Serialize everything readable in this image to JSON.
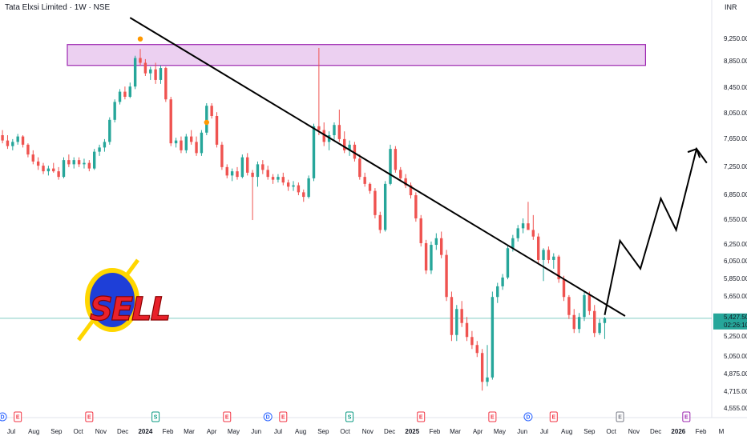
{
  "header": {
    "title": "Tata Elxsi Limited · 1W · NSE",
    "currency": "INR"
  },
  "price_tag": {
    "price": "5,427.50",
    "countdown": "02:26:10",
    "color": "#26a69a"
  },
  "colors": {
    "up": "#26a69a",
    "down": "#ef5350",
    "trendline": "#000000",
    "zone_fill": "#e9c8ef",
    "zone_stroke": "#9c27b0",
    "dividend": "#2962ff",
    "earnings": "#f23645",
    "split": "#089981",
    "event_gray": "#787b86",
    "event_purple": "#9c27b0",
    "marker": "#ff9800"
  },
  "logo": {
    "text": "SELL",
    "ring_color": "#ffd600",
    "disc_color": "#1e3fd8",
    "text_color": "#e8212a"
  },
  "chart_data": {
    "type": "candlestick",
    "title": "Tata Elxsi Limited · 1W · NSE",
    "currency": "INR",
    "y_ticks": [
      9250,
      8850,
      8450,
      8050,
      7650,
      7250,
      6850,
      6550,
      6250,
      6050,
      5850,
      5650,
      5250,
      5050,
      4875,
      4715,
      4555
    ],
    "y_tick_labels": [
      "9,250.00",
      "8,850.00",
      "8,450.00",
      "8,050.00",
      "7,650.00",
      "7,250.00",
      "6,850.00",
      "6,550.00",
      "6,250.00",
      "6,050.00",
      "5,850.00",
      "5,650.00",
      "5,250.00",
      "5,050.00",
      "4,875.00",
      "4,715.00",
      "4,555.00"
    ],
    "x_ticks": [
      "2023-07",
      "2023-08",
      "2023-09",
      "2023-10",
      "2023-11",
      "2023-12",
      "2024-01",
      "2024-02",
      "2024-03",
      "2024-04",
      "2024-05",
      "2024-06",
      "2024-07",
      "2024-08",
      "2024-09",
      "2024-10",
      "2024-11",
      "2024-12",
      "2025-01",
      "2025-02",
      "2025-03",
      "2025-04",
      "2025-05",
      "2025-06",
      "2025-07",
      "2025-08",
      "2025-09",
      "2025-10",
      "2025-11",
      "2025-12",
      "2026-01",
      "2026-02",
      "2026-03"
    ],
    "x_tick_labels": [
      "Jul",
      "Aug",
      "Sep",
      "Oct",
      "Nov",
      "Dec",
      "2024",
      "Feb",
      "Mar",
      "Apr",
      "May",
      "Jun",
      "Jul",
      "Aug",
      "Sep",
      "Oct",
      "Nov",
      "Dec",
      "2025",
      "Feb",
      "Mar",
      "Apr",
      "May",
      "Jun",
      "Jul",
      "Aug",
      "Sep",
      "Oct",
      "Nov",
      "Dec",
      "2026",
      "Feb",
      "M"
    ],
    "bold_x_ticks": [
      "2024",
      "2025",
      "2026"
    ],
    "candles": [
      [
        "2023-06-19",
        7700,
        7780,
        7580,
        7620
      ],
      [
        "2023-06-26",
        7620,
        7700,
        7500,
        7540
      ],
      [
        "2023-07-03",
        7540,
        7640,
        7480,
        7600
      ],
      [
        "2023-07-10",
        7600,
        7720,
        7560,
        7680
      ],
      [
        "2023-07-17",
        7680,
        7700,
        7520,
        7560
      ],
      [
        "2023-07-24",
        7560,
        7580,
        7380,
        7420
      ],
      [
        "2023-07-31",
        7420,
        7480,
        7280,
        7320
      ],
      [
        "2023-08-07",
        7320,
        7380,
        7200,
        7260
      ],
      [
        "2023-08-14",
        7260,
        7300,
        7140,
        7180
      ],
      [
        "2023-08-21",
        7180,
        7260,
        7120,
        7220
      ],
      [
        "2023-08-28",
        7220,
        7300,
        7160,
        7180
      ],
      [
        "2023-09-04",
        7180,
        7240,
        7060,
        7100
      ],
      [
        "2023-09-11",
        7100,
        7380,
        7080,
        7340
      ],
      [
        "2023-09-18",
        7340,
        7420,
        7240,
        7280
      ],
      [
        "2023-09-25",
        7280,
        7380,
        7220,
        7340
      ],
      [
        "2023-10-02",
        7340,
        7380,
        7240,
        7280
      ],
      [
        "2023-10-09",
        7280,
        7360,
        7220,
        7300
      ],
      [
        "2023-10-16",
        7300,
        7340,
        7180,
        7220
      ],
      [
        "2023-10-23",
        7220,
        7500,
        7200,
        7460
      ],
      [
        "2023-10-30",
        7460,
        7560,
        7400,
        7520
      ],
      [
        "2023-11-06",
        7520,
        7640,
        7460,
        7600
      ],
      [
        "2023-11-13",
        7600,
        7980,
        7560,
        7940
      ],
      [
        "2023-11-20",
        7940,
        8260,
        7900,
        8220
      ],
      [
        "2023-11-27",
        8220,
        8420,
        8180,
        8380
      ],
      [
        "2023-12-04",
        8380,
        8460,
        8260,
        8300
      ],
      [
        "2023-12-11",
        8300,
        8520,
        8280,
        8460
      ],
      [
        "2023-12-18",
        8460,
        8940,
        8420,
        8900
      ],
      [
        "2023-12-25",
        8900,
        9060,
        8780,
        8820
      ],
      [
        "2024-01-01",
        8820,
        8880,
        8620,
        8660
      ],
      [
        "2024-01-08",
        8660,
        8760,
        8560,
        8720
      ],
      [
        "2024-01-15",
        8720,
        8820,
        8500,
        8560
      ],
      [
        "2024-01-22",
        8560,
        8780,
        8500,
        8740
      ],
      [
        "2024-01-29",
        8740,
        8760,
        8220,
        8260
      ],
      [
        "2024-02-05",
        8260,
        8300,
        7540,
        7580
      ],
      [
        "2024-02-12",
        7580,
        7660,
        7520,
        7620
      ],
      [
        "2024-02-19",
        7620,
        7680,
        7440,
        7480
      ],
      [
        "2024-02-26",
        7480,
        7720,
        7440,
        7680
      ],
      [
        "2024-03-04",
        7680,
        7780,
        7560,
        7600
      ],
      [
        "2024-03-11",
        7600,
        7680,
        7400,
        7440
      ],
      [
        "2024-03-18",
        7440,
        7780,
        7400,
        7740
      ],
      [
        "2024-03-25",
        7740,
        8200,
        7700,
        8160
      ],
      [
        "2024-04-01",
        8160,
        8200,
        7960,
        8000
      ],
      [
        "2024-04-08",
        8000,
        8060,
        7520,
        7560
      ],
      [
        "2024-04-15",
        7560,
        7600,
        7200,
        7240
      ],
      [
        "2024-04-22",
        7240,
        7280,
        7080,
        7120
      ],
      [
        "2024-04-29",
        7120,
        7220,
        7040,
        7180
      ],
      [
        "2024-05-06",
        7180,
        7240,
        7060,
        7100
      ],
      [
        "2024-05-13",
        7100,
        7420,
        7080,
        7380
      ],
      [
        "2024-05-20",
        7380,
        7440,
        7120,
        7160
      ],
      [
        "2024-05-27",
        7160,
        7200,
        6540,
        7100
      ],
      [
        "2024-06-03",
        7100,
        7320,
        6960,
        7280
      ],
      [
        "2024-06-10",
        7280,
        7340,
        7140,
        7200
      ],
      [
        "2024-06-17",
        7200,
        7260,
        7060,
        7100
      ],
      [
        "2024-06-24",
        7100,
        7140,
        7000,
        7060
      ],
      [
        "2024-07-01",
        7060,
        7140,
        7020,
        7100
      ],
      [
        "2024-07-08",
        7100,
        7160,
        6980,
        7020
      ],
      [
        "2024-07-15",
        7020,
        7060,
        6900,
        6960
      ],
      [
        "2024-07-22",
        6960,
        7040,
        6900,
        6980
      ],
      [
        "2024-07-29",
        6980,
        7020,
        6840,
        6880
      ],
      [
        "2024-08-05",
        6880,
        6920,
        6760,
        6820
      ],
      [
        "2024-08-12",
        6820,
        7120,
        6800,
        7080
      ],
      [
        "2024-08-19",
        7080,
        7880,
        7040,
        7840
      ],
      [
        "2024-08-26",
        7840,
        9080,
        7700,
        7780
      ],
      [
        "2024-09-02",
        7780,
        7900,
        7540,
        7600
      ],
      [
        "2024-09-09",
        7600,
        7760,
        7480,
        7700
      ],
      [
        "2024-09-16",
        7700,
        7900,
        7620,
        7860
      ],
      [
        "2024-09-23",
        7860,
        8100,
        7600,
        7640
      ],
      [
        "2024-09-30",
        7640,
        7760,
        7440,
        7480
      ],
      [
        "2024-10-07",
        7480,
        7620,
        7400,
        7560
      ],
      [
        "2024-10-14",
        7560,
        7600,
        7320,
        7360
      ],
      [
        "2024-10-21",
        7360,
        7420,
        7060,
        7100
      ],
      [
        "2024-10-28",
        7100,
        7160,
        6960,
        7000
      ],
      [
        "2024-11-04",
        7000,
        7020,
        6860,
        6900
      ],
      [
        "2024-11-11",
        6900,
        6940,
        6560,
        6600
      ],
      [
        "2024-11-18",
        6600,
        6640,
        6380,
        6420
      ],
      [
        "2024-11-25",
        6420,
        7040,
        6400,
        7000
      ],
      [
        "2024-12-02",
        7000,
        7560,
        6980,
        7500
      ],
      [
        "2024-12-09",
        7500,
        7540,
        7160,
        7200
      ],
      [
        "2024-12-16",
        7200,
        7240,
        7040,
        7080
      ],
      [
        "2024-12-23",
        7080,
        7140,
        6940,
        6980
      ],
      [
        "2024-12-30",
        6980,
        7020,
        6800,
        6840
      ],
      [
        "2025-01-06",
        6840,
        6880,
        6520,
        6560
      ],
      [
        "2025-01-13",
        6560,
        6600,
        6220,
        6260
      ],
      [
        "2025-01-20",
        6260,
        6300,
        5900,
        5940
      ],
      [
        "2025-01-27",
        5940,
        6280,
        5900,
        6240
      ],
      [
        "2025-02-03",
        6240,
        6380,
        6180,
        6320
      ],
      [
        "2025-02-10",
        6320,
        6400,
        6080,
        6120
      ],
      [
        "2025-02-17",
        6120,
        6180,
        5600,
        5640
      ],
      [
        "2025-02-24",
        5640,
        5700,
        5200,
        5260
      ],
      [
        "2025-03-03",
        5260,
        5560,
        5200,
        5520
      ],
      [
        "2025-03-10",
        5520,
        5600,
        5340,
        5380
      ],
      [
        "2025-03-17",
        5380,
        5440,
        5200,
        5240
      ],
      [
        "2025-03-24",
        5240,
        5300,
        5120,
        5160
      ],
      [
        "2025-03-31",
        5160,
        5200,
        5040,
        5080
      ],
      [
        "2025-04-07",
        5080,
        5120,
        4720,
        4800
      ],
      [
        "2025-04-14",
        4800,
        5160,
        4760,
        4840
      ],
      [
        "2025-04-21",
        4840,
        5700,
        4820,
        5640
      ],
      [
        "2025-04-28",
        5640,
        5800,
        5580,
        5760
      ],
      [
        "2025-05-05",
        5760,
        5900,
        5720,
        5860
      ],
      [
        "2025-05-12",
        5860,
        6240,
        5840,
        6200
      ],
      [
        "2025-05-19",
        6200,
        6360,
        6160,
        6320
      ],
      [
        "2025-05-26",
        6320,
        6480,
        6280,
        6440
      ],
      [
        "2025-06-02",
        6440,
        6560,
        6380,
        6500
      ],
      [
        "2025-06-09",
        6500,
        6760,
        6440,
        6420
      ],
      [
        "2025-06-16",
        6420,
        6600,
        6300,
        6340
      ],
      [
        "2025-06-23",
        6340,
        6380,
        6020,
        6060
      ],
      [
        "2025-06-30",
        6060,
        6200,
        5820,
        6180
      ],
      [
        "2025-07-07",
        6180,
        6220,
        6020,
        6060
      ],
      [
        "2025-07-14",
        6060,
        6140,
        5960,
        6100
      ],
      [
        "2025-07-21",
        6100,
        6120,
        5800,
        5840
      ],
      [
        "2025-07-28",
        5840,
        5880,
        5600,
        5640
      ],
      [
        "2025-08-04",
        5640,
        5660,
        5420,
        5460
      ],
      [
        "2025-08-11",
        5460,
        5520,
        5280,
        5320
      ],
      [
        "2025-08-18",
        5320,
        5480,
        5280,
        5440
      ],
      [
        "2025-08-25",
        5440,
        5700,
        5400,
        5660
      ],
      [
        "2025-09-01",
        5660,
        5700,
        5460,
        5500
      ],
      [
        "2025-09-08",
        5500,
        5560,
        5240,
        5280
      ],
      [
        "2025-09-15",
        5280,
        5420,
        5260,
        5380
      ],
      [
        "2025-09-22",
        5380,
        5440,
        5220,
        5427.5
      ]
    ],
    "resistance_zone": {
      "from": "2023-06-19",
      "to": "2025-11-17",
      "low": 8780,
      "high": 9140
    },
    "trendline": {
      "points": [
        [
          "2023-12-11",
          9620
        ],
        [
          "2025-10-20",
          5450
        ]
      ]
    },
    "projection": {
      "points": [
        [
          "2025-09-22",
          5460
        ],
        [
          "2025-10-13",
          6290
        ],
        [
          "2025-11-10",
          5960
        ],
        [
          "2025-12-08",
          6800
        ],
        [
          "2025-12-29",
          6420
        ],
        [
          "2026-01-26",
          7500
        ],
        [
          "2026-02-09",
          7300
        ]
      ]
    },
    "markers": [
      [
        "2023-12-25",
        9240
      ],
      [
        "2024-03-25",
        7900
      ]
    ],
    "event_markers": [
      {
        "date": "2023-06-19",
        "type": "D"
      },
      {
        "date": "2023-07-10",
        "type": "E"
      },
      {
        "date": "2023-10-16",
        "type": "E"
      },
      {
        "date": "2024-01-15",
        "type": "S"
      },
      {
        "date": "2024-04-22",
        "type": "E"
      },
      {
        "date": "2024-06-17",
        "type": "D"
      },
      {
        "date": "2024-07-08",
        "type": "E"
      },
      {
        "date": "2024-10-07",
        "type": "S"
      },
      {
        "date": "2025-01-13",
        "type": "E"
      },
      {
        "date": "2025-04-21",
        "type": "E"
      },
      {
        "date": "2025-06-09",
        "type": "D"
      },
      {
        "date": "2025-07-14",
        "type": "E"
      },
      {
        "date": "2025-10-13",
        "type": "E",
        "style": "gray"
      },
      {
        "date": "2026-01-12",
        "type": "E",
        "style": "purple"
      }
    ],
    "last_price": 5427.5
  }
}
